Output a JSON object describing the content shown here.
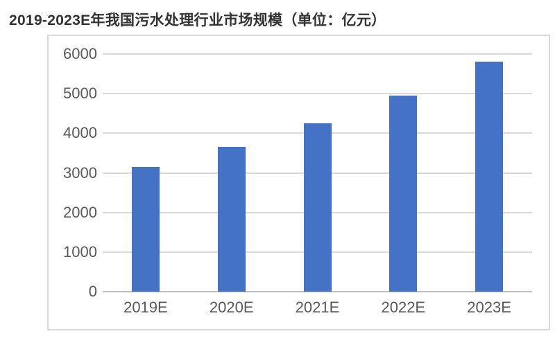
{
  "title": "2019-2023E年我国污水处理行业市场规模（单位：亿元）",
  "chart_data": {
    "type": "bar",
    "title": "2019-2023E年我国污水处理行业市场规模（单位：亿元）",
    "categories": [
      "2019E",
      "2020E",
      "2021E",
      "2022E",
      "2023E"
    ],
    "values": [
      3150,
      3650,
      4250,
      4950,
      5800
    ],
    "xlabel": "",
    "ylabel": "",
    "unit": "亿元",
    "ylim": [
      0,
      6000
    ],
    "yticks": [
      0,
      1000,
      2000,
      3000,
      4000,
      5000,
      6000
    ],
    "grid": true,
    "legend": false,
    "colors": {
      "bar": "#4472c4",
      "gridline": "#d9d9d9",
      "axis_line": "#c0c0c0",
      "tick_label": "#595959",
      "title": "#333333",
      "frame_border": "#d9d9d9",
      "background": "#ffffff"
    }
  }
}
